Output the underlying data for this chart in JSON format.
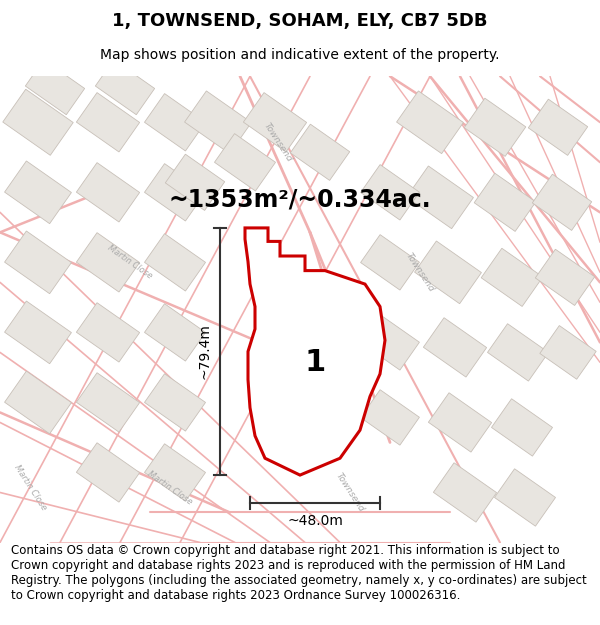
{
  "title": "1, TOWNSEND, SOHAM, ELY, CB7 5DB",
  "subtitle": "Map shows position and indicative extent of the property.",
  "area_text": "~1353m²/~0.334ac.",
  "width_label": "~48.0m",
  "height_label": "~79.4m",
  "plot_number": "1",
  "footer": "Contains OS data © Crown copyright and database right 2021. This information is subject to Crown copyright and database rights 2023 and is reproduced with the permission of HM Land Registry. The polygons (including the associated geometry, namely x, y co-ordinates) are subject to Crown copyright and database rights 2023 Ordnance Survey 100026316.",
  "bg_color": "#ffffff",
  "map_bg": "#ffffff",
  "title_bg": "#ffffff",
  "footer_bg": "#ffffff",
  "plot_fill": "#ffffff",
  "plot_stroke": "#cc0000",
  "building_fill": "#e8e5e0",
  "building_stroke": "#c8c0b8",
  "road_color": "#f0b0b0",
  "road_outline": "#e8a0a0",
  "dim_color": "#333333",
  "title_fontsize": 13,
  "subtitle_fontsize": 10,
  "footer_fontsize": 8.5,
  "area_fontsize": 17,
  "dim_fontsize": 10,
  "plot_label_fontsize": 22,
  "road_label_color": "#aaaaaa",
  "road_label_size": 6.5
}
